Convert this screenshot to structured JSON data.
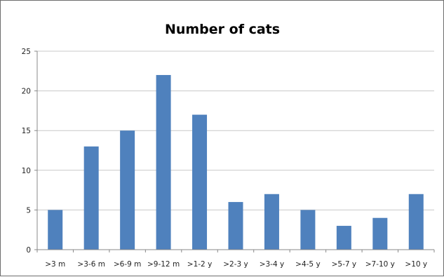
{
  "chart_data": {
    "type": "bar",
    "title": "Number of cats",
    "categories": [
      ">3 m",
      ">3-6 m",
      ">6-9 m",
      ">9-12 m",
      ">1-2 y",
      ">2-3 y",
      ">3-4 y",
      ">4-5 y",
      ">5-7 y",
      ">7-10 y",
      ">10 y"
    ],
    "values": [
      5,
      13,
      15,
      22,
      17,
      6,
      7,
      5,
      3,
      4,
      7
    ],
    "xlabel": "",
    "ylabel": "",
    "ylim": [
      0,
      25
    ],
    "yticks": [
      0,
      5,
      10,
      15,
      20,
      25
    ],
    "grid": true,
    "legend": "none",
    "bar_color": "#4f81bd"
  }
}
